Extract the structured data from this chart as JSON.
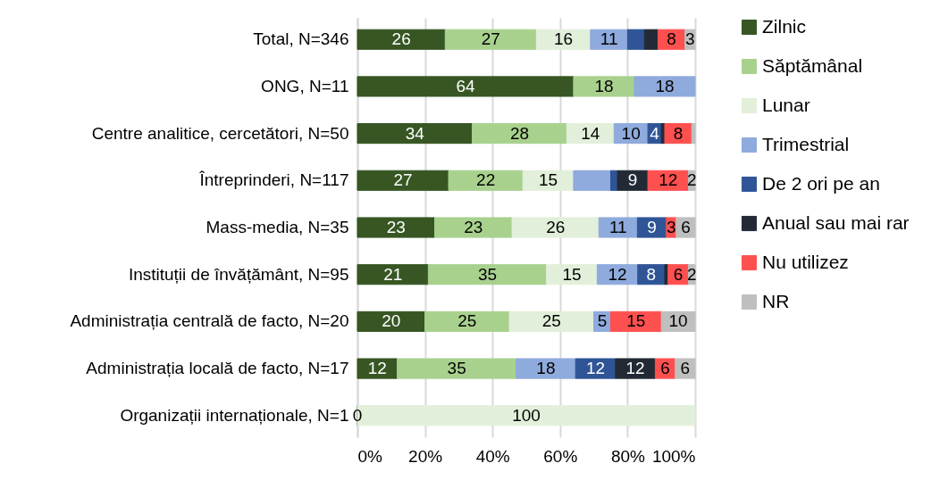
{
  "chart_data": {
    "type": "bar",
    "orientation": "horizontal",
    "stacked": true,
    "categories": [
      "Total, N=346",
      "ONG, N=11",
      "Centre analitice, cercetători, N=50",
      "Întreprinderi, N=117",
      "Mass-media, N=35",
      "Instituții de învățământ, N=95",
      "Administrația centrală de facto, N=20",
      "Administrația locală de facto, N=17",
      "Organizații internaționale, N=1"
    ],
    "series": [
      {
        "name": "Zilnic",
        "color": "#375623",
        "values": [
          26,
          64,
          34,
          27,
          22.9,
          21,
          20,
          11.8,
          0
        ],
        "value_labels": [
          "26",
          "64",
          "34",
          "27",
          "23",
          "21",
          "20",
          "12",
          "0"
        ]
      },
      {
        "name": "Săptămânal",
        "color": "#a9d18e",
        "values": [
          27,
          18,
          28,
          22,
          22.9,
          35,
          25,
          35.2,
          0
        ],
        "value_labels": [
          "27",
          "18",
          "28",
          "22",
          "23",
          "35",
          "25",
          "35",
          null
        ]
      },
      {
        "name": "Lunar",
        "color": "#e2efda",
        "values": [
          16,
          0,
          14,
          15,
          25.7,
          15,
          25,
          0,
          100
        ],
        "value_labels": [
          "16",
          null,
          "14",
          "15",
          "26",
          "15",
          "25",
          null,
          "100"
        ]
      },
      {
        "name": "Trimestrial",
        "color": "#8faadc",
        "values": [
          11,
          18,
          10,
          11,
          11.4,
          12,
          5,
          17.6,
          0
        ],
        "value_labels": [
          "11",
          "18",
          "10",
          null,
          "11",
          "12",
          "5",
          "18",
          null
        ]
      },
      {
        "name": "De 2 ori pe an",
        "color": "#2f5597",
        "values": [
          5,
          0,
          4,
          2,
          8.6,
          8,
          0,
          11.8,
          0
        ],
        "value_labels": [
          null,
          null,
          "4",
          null,
          "9",
          "8",
          null,
          "12",
          null
        ]
      },
      {
        "name": "Anual sau mai rar",
        "color": "#222a35",
        "values": [
          4,
          0,
          1,
          9,
          0,
          1,
          0,
          11.8,
          0
        ],
        "value_labels": [
          null,
          null,
          null,
          "9",
          null,
          null,
          null,
          "12",
          null
        ]
      },
      {
        "name": "Nu utilizez",
        "color": "#ff5050",
        "values": [
          8,
          0,
          8,
          12,
          2.9,
          6,
          15,
          5.9,
          0
        ],
        "value_labels": [
          "8",
          null,
          "8",
          "12",
          "3",
          "6",
          "15",
          "6",
          null
        ]
      },
      {
        "name": "NR",
        "color": "#bfbfbf",
        "values": [
          3,
          0,
          1,
          2,
          5.6,
          2,
          10,
          5.9,
          0
        ],
        "value_labels": [
          "3",
          null,
          null,
          "2",
          "6",
          "2",
          "10",
          "6",
          null
        ]
      }
    ],
    "xlim": [
      0,
      100
    ],
    "xticks": [
      {
        "value": 0,
        "label": "0%"
      },
      {
        "value": 20,
        "label": "20%"
      },
      {
        "value": 40,
        "label": "40%"
      },
      {
        "value": 60,
        "label": "60%"
      },
      {
        "value": 80,
        "label": "80%"
      },
      {
        "value": 100,
        "label": "100%"
      }
    ],
    "grid": "x",
    "legend": "right"
  }
}
